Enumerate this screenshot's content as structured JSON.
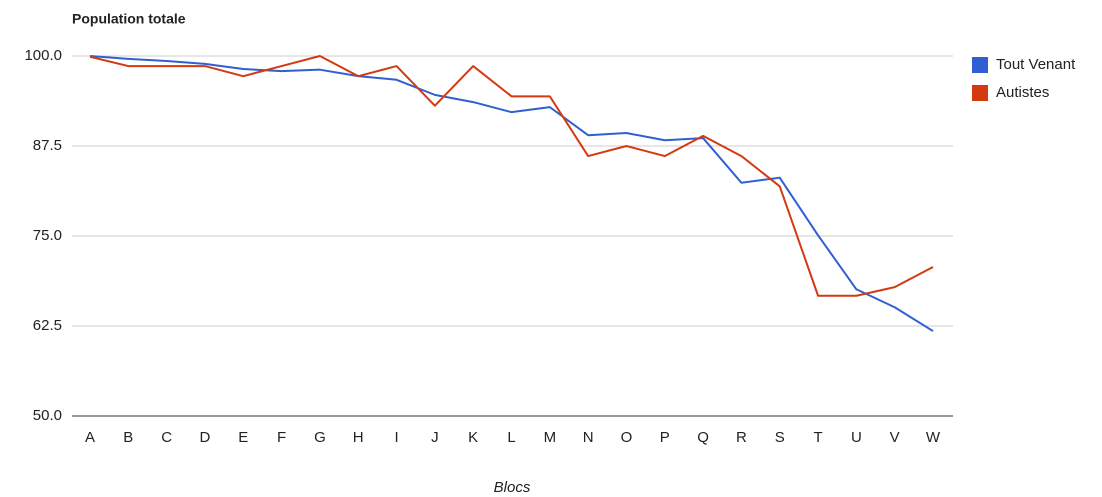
{
  "chart_data": {
    "type": "line",
    "title": "Population totale",
    "x_label": "Blocs",
    "categories": [
      "A",
      "B",
      "C",
      "D",
      "E",
      "F",
      "G",
      "H",
      "I",
      "J",
      "K",
      "L",
      "M",
      "N",
      "O",
      "P",
      "Q",
      "R",
      "S",
      "T",
      "U",
      "V",
      "W"
    ],
    "series": [
      {
        "name": "Tout Venant",
        "color": "#2f5fd0",
        "values": [
          100,
          99.6,
          99.3,
          98.9,
          98.2,
          97.9,
          98.1,
          97.2,
          96.7,
          94.6,
          93.6,
          92.2,
          92.9,
          89.0,
          89.3,
          88.3,
          88.6,
          82.4,
          83.1,
          75.1,
          67.6,
          65.1,
          61.8
        ]
      },
      {
        "name": "Autistes",
        "color": "#d23a12",
        "values": [
          99.9,
          98.6,
          98.6,
          98.6,
          97.2,
          98.6,
          100,
          97.2,
          98.6,
          93.1,
          98.6,
          94.4,
          94.4,
          86.1,
          87.5,
          86.1,
          88.9,
          86.1,
          81.9,
          66.7,
          66.7,
          67.9,
          70.7
        ]
      }
    ],
    "ylim": [
      50,
      100
    ],
    "yticks": [
      {
        "value": 50,
        "label": "50.0"
      },
      62.5,
      {
        "value": 75,
        "label": "75.0"
      },
      87.5,
      {
        "value": 100,
        "label": "100.0"
      }
    ],
    "grid": true,
    "legend": "right"
  }
}
